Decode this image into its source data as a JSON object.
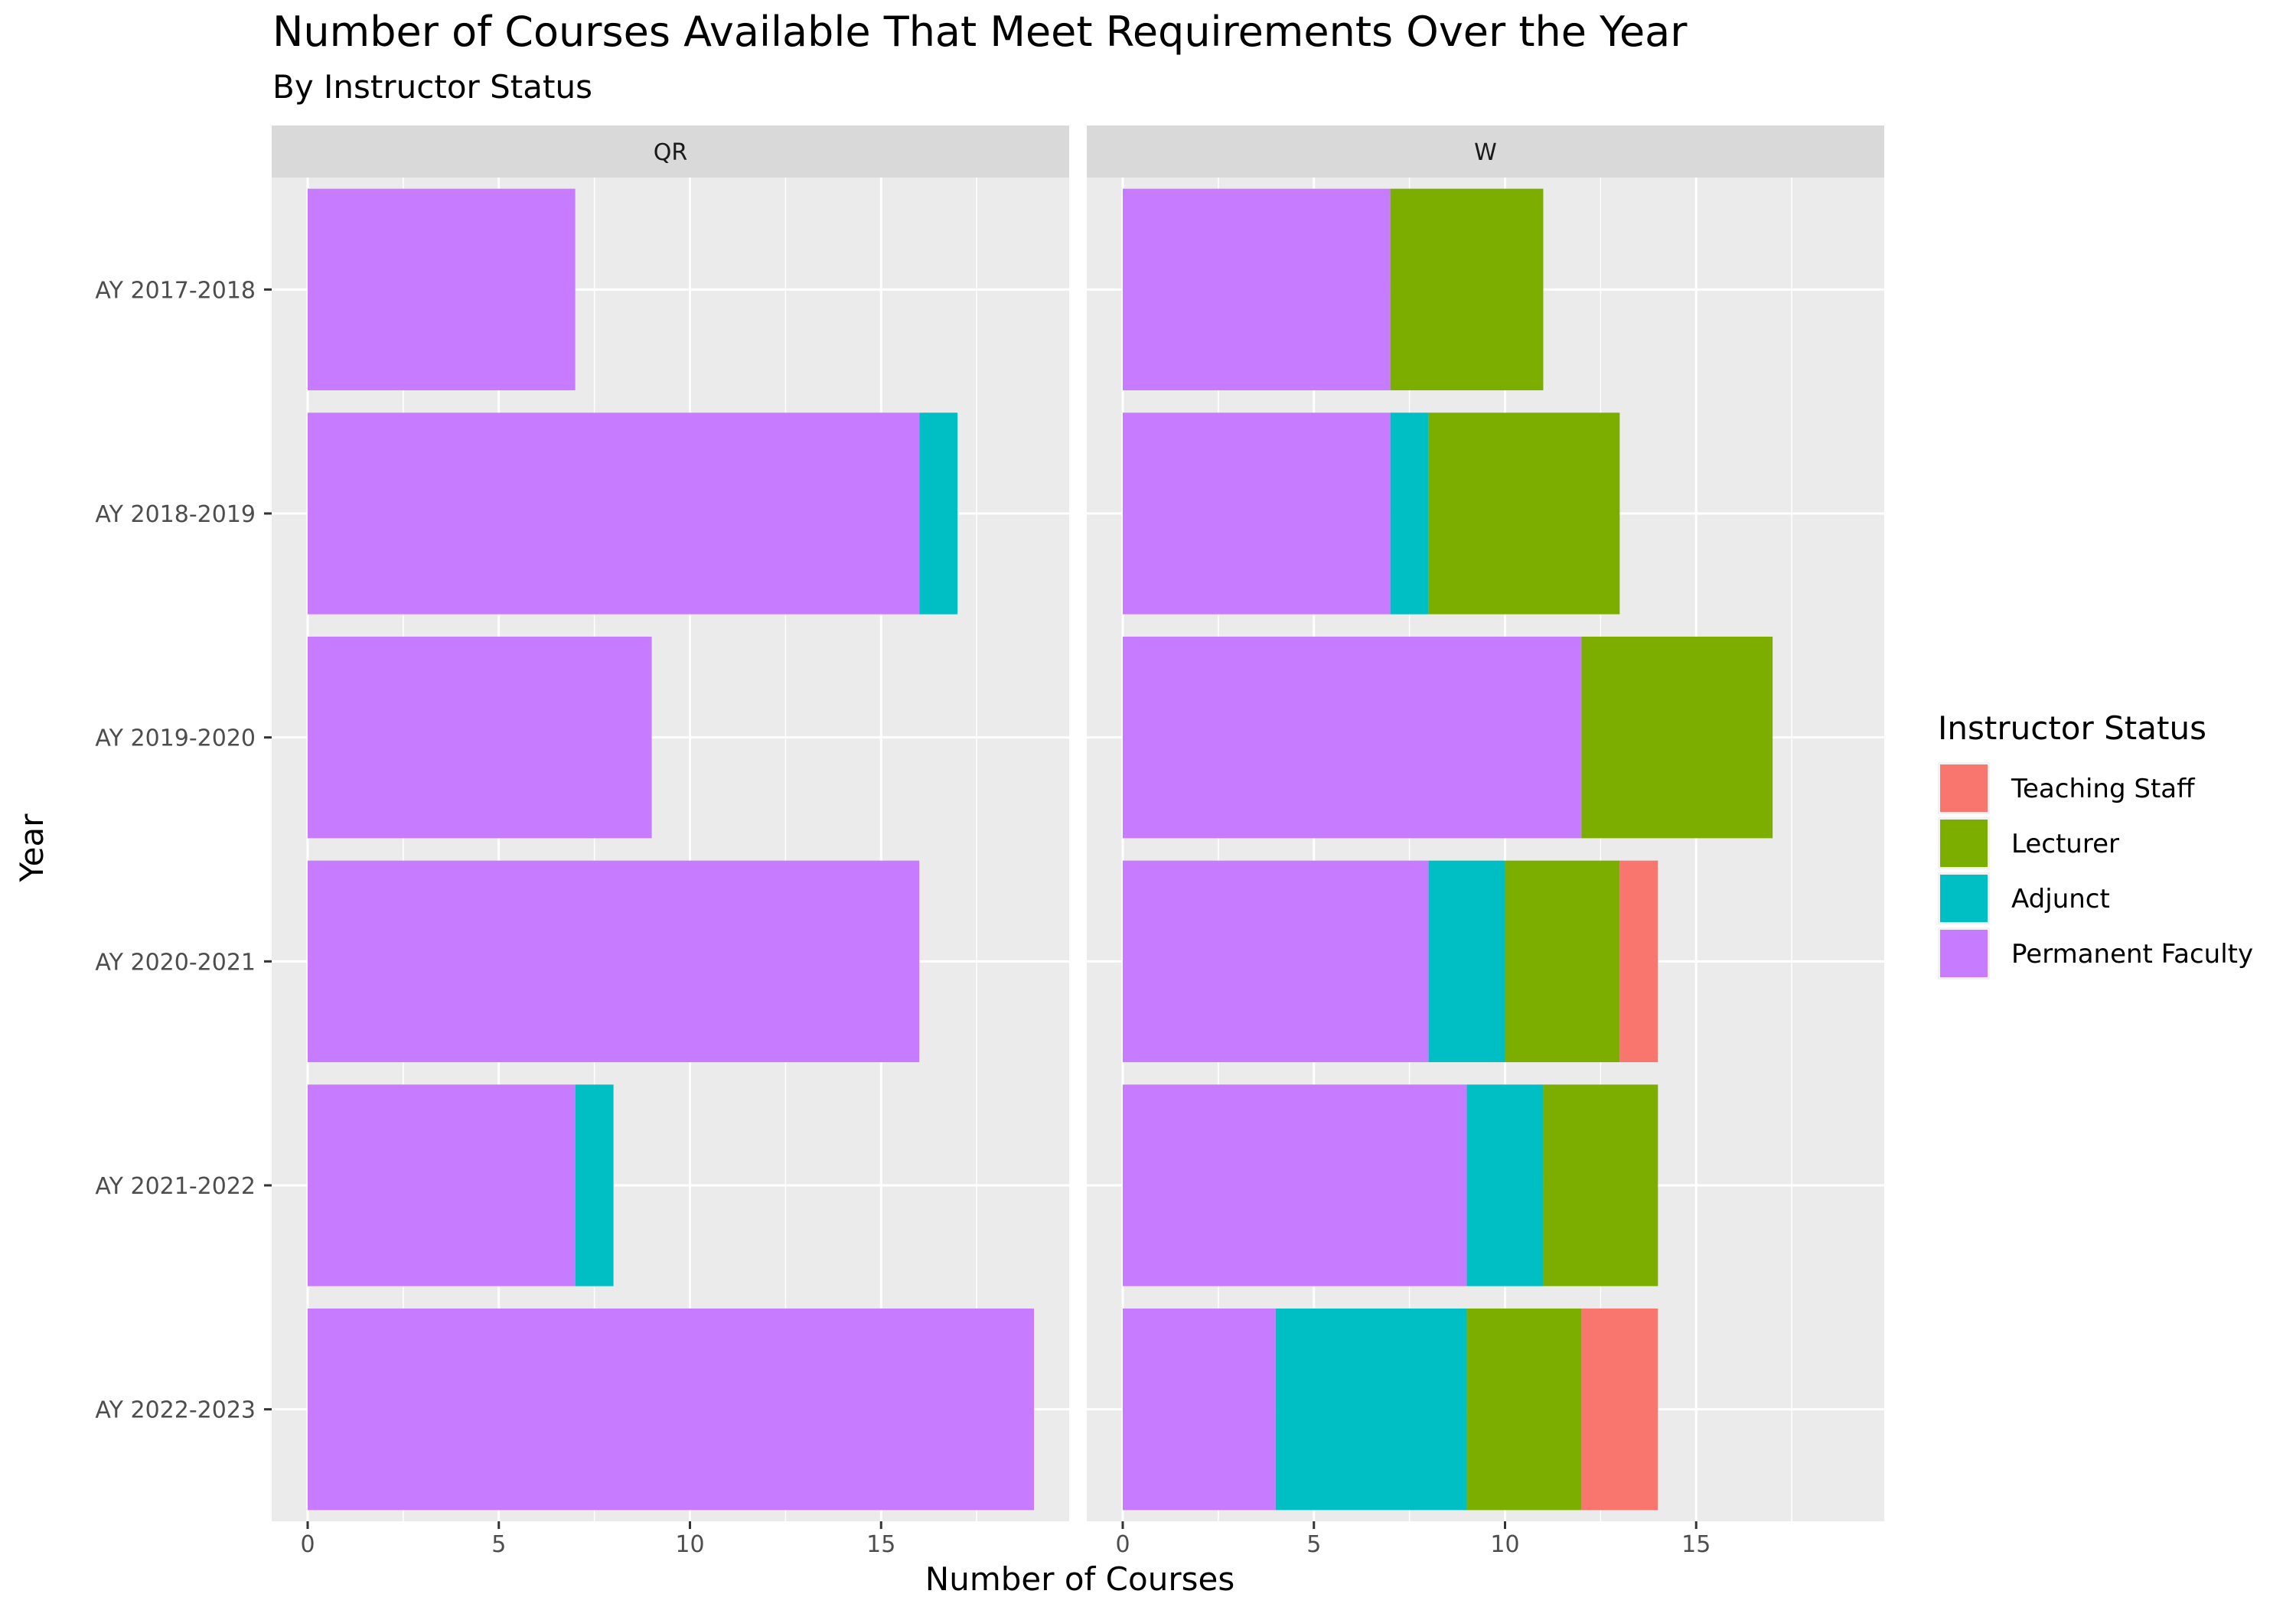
{
  "chart_data": {
    "type": "bar",
    "orientation": "horizontal",
    "stacked": true,
    "title": "Number of Courses Available That Meet Requirements Over the Year",
    "subtitle": "By Instructor Status",
    "xlabel": "Number of Courses",
    "ylabel": "Year",
    "xlim": [
      0,
      19
    ],
    "xticks": [
      0,
      5,
      10,
      15
    ],
    "grid": true,
    "legend": {
      "title": "Instructor Status",
      "placement": "right",
      "entries": [
        {
          "name": "Teaching Staff",
          "color": "#F8766D"
        },
        {
          "name": "Lecturer",
          "color": "#7CAE00"
        },
        {
          "name": "Adjunct",
          "color": "#00BFC4"
        },
        {
          "name": "Permanent Faculty",
          "color": "#C77CFF"
        }
      ]
    },
    "categories": [
      "AY 2017-2018",
      "AY 2018-2019",
      "AY 2019-2020",
      "AY 2020-2021",
      "AY 2021-2022",
      "AY 2022-2023"
    ],
    "stack_order": [
      "Permanent Faculty",
      "Adjunct",
      "Lecturer",
      "Teaching Staff"
    ],
    "panels": [
      {
        "label": "QR",
        "series": [
          {
            "name": "Permanent Faculty",
            "values": [
              7,
              16,
              9,
              16,
              7,
              19
            ]
          },
          {
            "name": "Adjunct",
            "values": [
              0,
              1,
              0,
              0,
              1,
              0
            ]
          },
          {
            "name": "Lecturer",
            "values": [
              0,
              0,
              0,
              0,
              0,
              0
            ]
          },
          {
            "name": "Teaching Staff",
            "values": [
              0,
              0,
              0,
              0,
              0,
              0
            ]
          }
        ]
      },
      {
        "label": "W",
        "series": [
          {
            "name": "Permanent Faculty",
            "values": [
              7,
              7,
              12,
              8,
              9,
              4
            ]
          },
          {
            "name": "Adjunct",
            "values": [
              0,
              1,
              0,
              2,
              2,
              5
            ]
          },
          {
            "name": "Lecturer",
            "values": [
              4,
              5,
              5,
              3,
              3,
              3
            ]
          },
          {
            "name": "Teaching Staff",
            "values": [
              0,
              0,
              0,
              1,
              0,
              2
            ]
          }
        ]
      }
    ]
  }
}
